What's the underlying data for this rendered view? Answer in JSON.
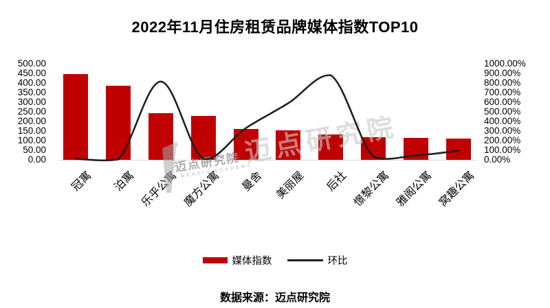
{
  "title": "2022年11月住房租赁品牌媒体指数TOP10",
  "source_note": "数据来源：迈点研究院",
  "legend": {
    "bar_label": "媒体指数",
    "line_label": "环比"
  },
  "colors": {
    "bar": "#C00000",
    "line": "#1F1F1F",
    "axis_line": "#D6D6D6",
    "text": "#000000",
    "watermark_gray": "#C9C9C9"
  },
  "watermark": {
    "big_text": "迈点研究院",
    "small_text": "迈点研究院",
    "small_subtext": "MEADIN ACADEMY",
    "logo": "meadin-lighthouse-logo"
  },
  "left_axis": {
    "ticks": [
      "500.00",
      "450.00",
      "400.00",
      "350.00",
      "300.00",
      "250.00",
      "200.00",
      "150.00",
      "100.00",
      "50.00",
      "0.00"
    ]
  },
  "right_axis": {
    "ticks": [
      "1000.00%",
      "900.00%",
      "800.00%",
      "700.00%",
      "600.00%",
      "500.00%",
      "400.00%",
      "300.00%",
      "200.00%",
      "100.00%",
      "0.00%"
    ]
  },
  "chart_data": {
    "type": "bar",
    "combo": "bar+line",
    "title": "2022年11月住房租赁品牌媒体指数TOP10",
    "categories": [
      "冠寓",
      "泊寓",
      "乐乎公寓",
      "魔方公寓",
      "曼舍",
      "美丽屋",
      "后社",
      "憬黎公寓",
      "雅阁公寓",
      "窝趣公寓"
    ],
    "series": [
      {
        "name": "媒体指数",
        "type": "bar",
        "axis": "left",
        "values": [
          445,
          384,
          243,
          228,
          161,
          153,
          132,
          118,
          114,
          111
        ]
      },
      {
        "name": "环比",
        "type": "line",
        "axis": "right",
        "unit": "%",
        "values": [
          10,
          5,
          815,
          10,
          330,
          590,
          880,
          35,
          45,
          95
        ]
      }
    ],
    "left_ylim": [
      0,
      500
    ],
    "right_ylim_percent": [
      0,
      1000
    ],
    "grid": false,
    "legend_position": "bottom",
    "x_label_rotation_deg": 45
  }
}
